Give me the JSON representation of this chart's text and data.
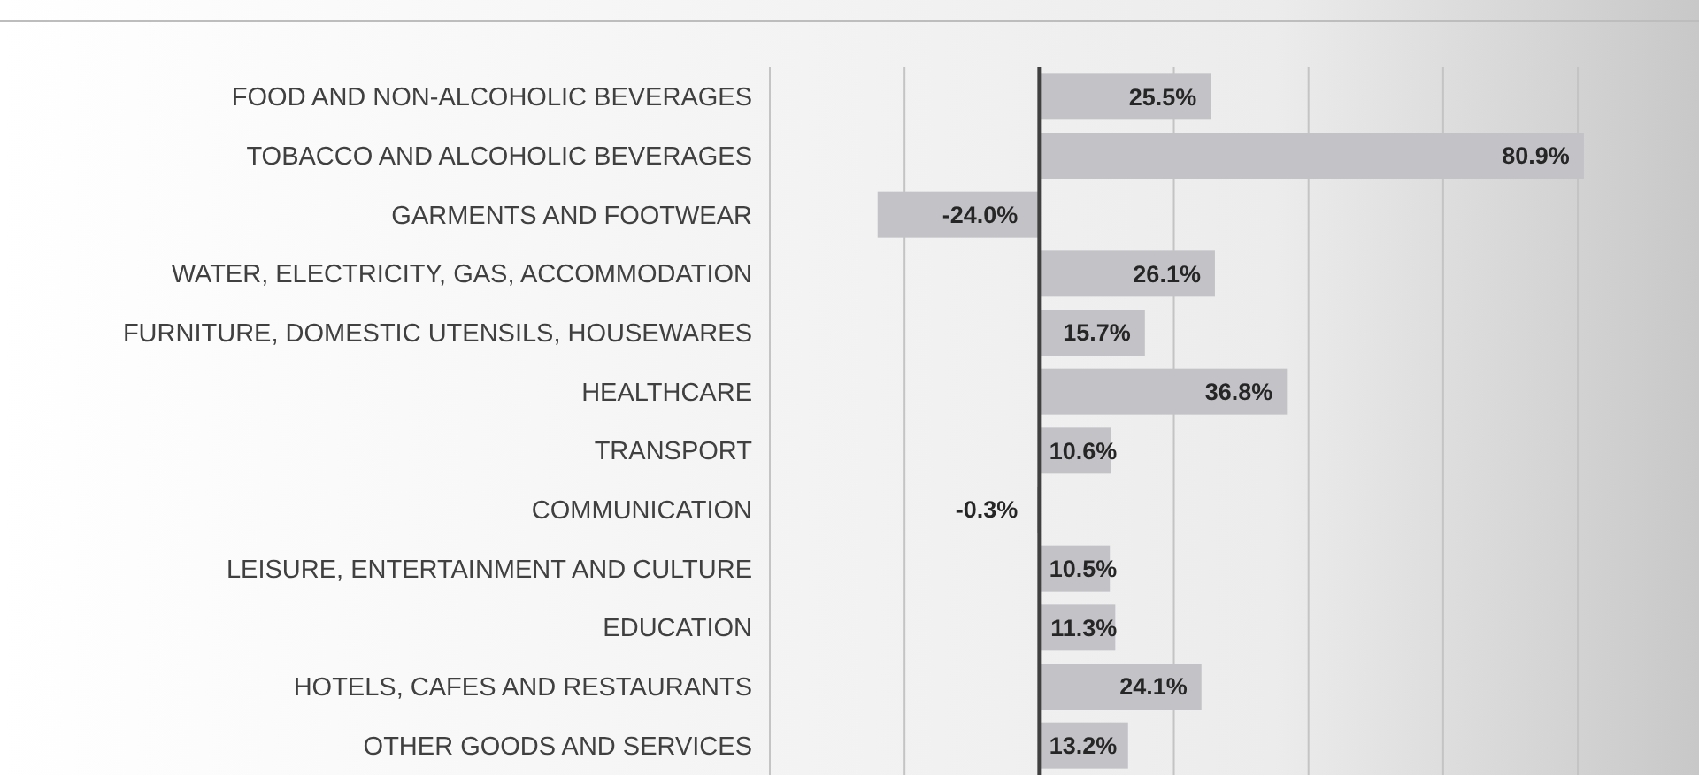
{
  "chart_data": {
    "type": "bar",
    "orientation": "horizontal",
    "categories": [
      "FOOD AND NON-ALCOHOLIC BEVERAGES",
      "TOBACCO AND ALCOHOLIC BEVERAGES",
      "GARMENTS AND FOOTWEAR",
      "WATER, ELECTRICITY, GAS, ACCOMMODATION",
      "FURNITURE, DOMESTIC UTENSILS, HOUSEWARES",
      "HEALTHCARE",
      "TRANSPORT",
      "COMMUNICATION",
      "LEISURE, ENTERTAINMENT AND CULTURE",
      "EDUCATION",
      "HOTELS, CAFES AND RESTAURANTS",
      "OTHER GOODS AND SERVICES"
    ],
    "values": [
      25.5,
      80.9,
      -24.0,
      26.1,
      15.7,
      36.8,
      10.6,
      -0.3,
      10.5,
      11.3,
      24.1,
      13.2
    ],
    "value_labels": [
      "25.5%",
      "80.9%",
      "-24.0%",
      "26.1%",
      "15.7%",
      "36.8%",
      "10.6%",
      "-0.3%",
      "10.5%",
      "11.3%",
      "24.1%",
      "13.2%"
    ],
    "color": "#c3c3c7",
    "xlim": [
      -40,
      98
    ],
    "xticks": [
      {
        "value": -40,
        "label": null
      },
      {
        "value": -20,
        "label": null
      },
      {
        "value": 0,
        "label": null
      },
      {
        "value": 20,
        "label": null
      },
      {
        "value": 40,
        "label": null
      },
      {
        "value": 60,
        "label": null
      },
      {
        "value": 80,
        "label": null
      }
    ],
    "tick_labels": "y",
    "grid": "x"
  }
}
